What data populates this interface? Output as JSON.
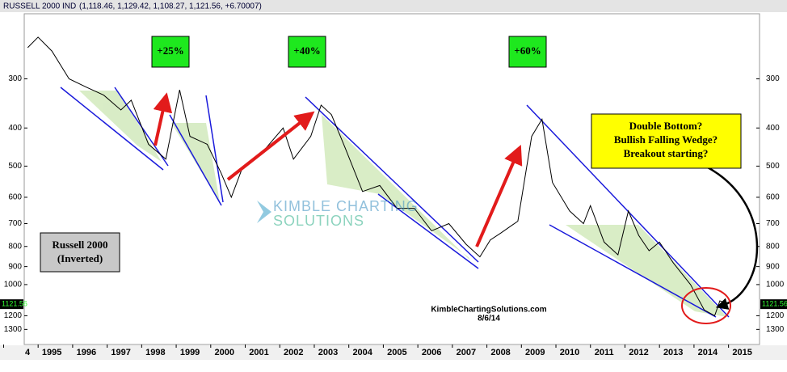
{
  "chart_data": {
    "type": "line",
    "header": "RUSSELL 2000 IND",
    "header_values": "(1,118.46, 1,129.42, 1,108.27, 1,121.56, +6.70007)",
    "log_scale": true,
    "inverted": true,
    "grid": false,
    "xlim": [
      1994.2,
      2015.5
    ],
    "ylim": [
      205,
      1420
    ],
    "yticks": [
      300,
      400,
      500,
      600,
      700,
      800,
      900,
      1000,
      1200,
      1300
    ],
    "xticks": [
      {
        "value": 1994,
        "label": "4"
      },
      1995,
      1996,
      1997,
      1998,
      1999,
      2000,
      2001,
      2002,
      2003,
      2004,
      2005,
      2006,
      2007,
      2008,
      2009,
      2010,
      2011,
      2012,
      2013,
      2014,
      2015
    ],
    "last_value": 1121.56,
    "series": [
      {
        "name": "Russell 2000",
        "color": "#000000",
        "x": [
          1994.3,
          1994.6,
          1995.0,
          1995.5,
          1996.0,
          1996.5,
          1997.0,
          1997.3,
          1997.8,
          1998.3,
          1998.7,
          1999.0,
          1999.5,
          1999.9,
          2000.2,
          2000.5,
          2000.9,
          2001.2,
          2001.7,
          2002.0,
          2002.5,
          2002.8,
          2003.1,
          2003.5,
          2004.0,
          2004.5,
          2005.0,
          2005.5,
          2006.0,
          2006.5,
          2007.0,
          2007.4,
          2007.7,
          2008.0,
          2008.5,
          2008.9,
          2009.2,
          2009.5,
          2010.0,
          2010.4,
          2010.6,
          2011.0,
          2011.4,
          2011.7,
          2012.0,
          2012.3,
          2012.6,
          2013.0,
          2013.5,
          2013.9,
          2014.2,
          2014.35,
          2014.6
        ],
        "values": [
          250,
          235,
          255,
          300,
          315,
          330,
          360,
          340,
          440,
          480,
          320,
          420,
          440,
          520,
          600,
          510,
          480,
          450,
          400,
          480,
          420,
          350,
          370,
          450,
          580,
          560,
          640,
          640,
          730,
          700,
          790,
          850,
          770,
          740,
          690,
          420,
          380,
          550,
          650,
          700,
          630,
          780,
          840,
          650,
          750,
          820,
          780,
          880,
          1000,
          1160,
          1200,
          1100,
          1120
        ]
      }
    ],
    "annotations": {
      "gain_1": "+25%",
      "gain_2": "+40%",
      "gain_3": "+60%",
      "callout": [
        "Double Bottom?",
        "Bullish Falling Wedge?",
        "Breakout starting?"
      ],
      "label_box": [
        "Russell 2000",
        "(Inverted)"
      ],
      "watermark": [
        "KIMBLE CHARTING",
        "SOLUTIONS"
      ],
      "source": "KimbleChartingSolutions.com",
      "date": "8/6/14"
    }
  }
}
